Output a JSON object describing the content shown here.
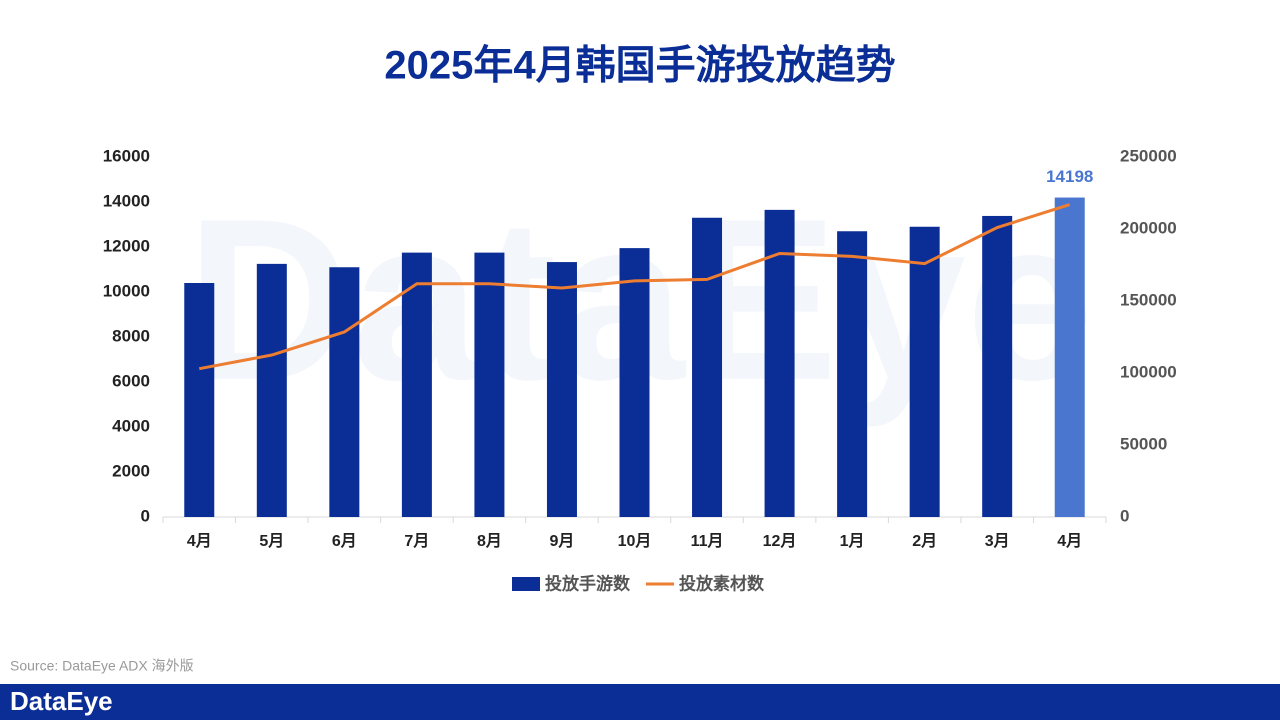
{
  "chart_data": {
    "type": "bar-line",
    "title": "2025年4月韩国手游投放趋势",
    "categories": [
      "4月",
      "5月",
      "6月",
      "7月",
      "8月",
      "9月",
      "10月",
      "11月",
      "12月",
      "1月",
      "2月",
      "3月",
      "4月"
    ],
    "series": [
      {
        "name": "投放手游数",
        "type": "bar",
        "axis": "y",
        "color": "#0a2d96",
        "colors": [
          "#0a2d96",
          "#0a2d96",
          "#0a2d96",
          "#0a2d96",
          "#0a2d96",
          "#0a2d96",
          "#0a2d96",
          "#0a2d96",
          "#0a2d96",
          "#0a2d96",
          "#0a2d96",
          "#0a2d96",
          "#4a76d0"
        ],
        "values": [
          10400,
          11250,
          11100,
          11750,
          11750,
          11330,
          11950,
          13300,
          13650,
          12700,
          12900,
          13380,
          14198
        ],
        "value_labels": [
          null,
          null,
          null,
          null,
          null,
          null,
          null,
          null,
          null,
          null,
          null,
          null,
          "14198"
        ]
      },
      {
        "name": "投放素材数",
        "type": "line",
        "axis": "y2",
        "color": "#ed7d31",
        "values": [
          103000,
          112500,
          128500,
          162000,
          162000,
          159000,
          164000,
          165000,
          183000,
          181000,
          176000,
          201000,
          217000
        ]
      }
    ],
    "ylim": [
      0,
      16000
    ],
    "yticks": [
      0,
      2000,
      4000,
      6000,
      8000,
      10000,
      12000,
      14000,
      16000
    ],
    "y2lim": [
      0,
      250000
    ],
    "y2ticks": [
      0,
      50000,
      100000,
      150000,
      200000,
      250000
    ],
    "legend": "bottom"
  },
  "source": "Source: DataEye ADX 海外版",
  "watermark": "DataEye",
  "footer_logo": "DataEye"
}
